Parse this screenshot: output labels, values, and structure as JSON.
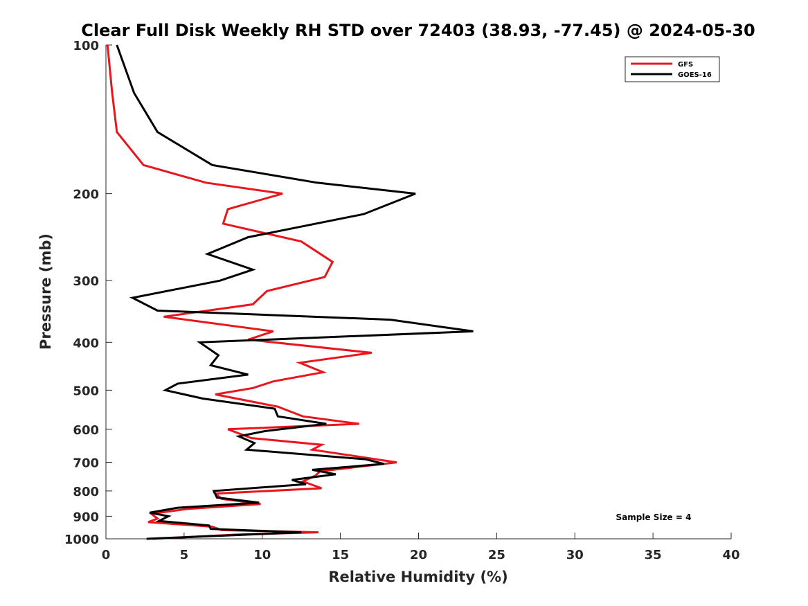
{
  "chart_data": {
    "type": "line",
    "title": "Clear Full Disk Weekly RH STD over 72403 (38.93, -77.45) @ 2024-05-30",
    "xlabel": "Relative Humidity (%)",
    "ylabel": "Pressure (mb)",
    "xlim": [
      0,
      40
    ],
    "ylim": [
      100,
      1000
    ],
    "y_scale": "log",
    "y_reversed": true,
    "x_ticks": [
      0,
      5,
      10,
      15,
      20,
      25,
      30,
      35,
      40
    ],
    "y_ticks": [
      100,
      200,
      300,
      400,
      500,
      600,
      700,
      800,
      900,
      1000
    ],
    "grid": false,
    "legend": "top-right",
    "annotation": "Sample Size = 4",
    "series": [
      {
        "name": "GFS",
        "color": "#e8171d",
        "points": [
          [
            0.1,
            100
          ],
          [
            0.4,
            125
          ],
          [
            0.7,
            150
          ],
          [
            2.4,
            175
          ],
          [
            6.4,
            190
          ],
          [
            11.3,
            200
          ],
          [
            7.8,
            215
          ],
          [
            7.5,
            230
          ],
          [
            12.5,
            250
          ],
          [
            14.5,
            275
          ],
          [
            14.0,
            295
          ],
          [
            10.3,
            315
          ],
          [
            9.4,
            335
          ],
          [
            3.7,
            355
          ],
          [
            10.7,
            380
          ],
          [
            9.1,
            395
          ],
          [
            17.0,
            420
          ],
          [
            12.4,
            440
          ],
          [
            13.9,
            460
          ],
          [
            10.7,
            480
          ],
          [
            9.4,
            495
          ],
          [
            7.0,
            510
          ],
          [
            11.0,
            540
          ],
          [
            12.6,
            565
          ],
          [
            16.2,
            585
          ],
          [
            7.8,
            600
          ],
          [
            9.3,
            625
          ],
          [
            13.8,
            645
          ],
          [
            13.2,
            660
          ],
          [
            18.6,
            700
          ],
          [
            13.7,
            730
          ],
          [
            13.4,
            745
          ],
          [
            12.6,
            765
          ],
          [
            13.8,
            790
          ],
          [
            7.0,
            810
          ],
          [
            7.4,
            830
          ],
          [
            9.9,
            850
          ],
          [
            5.2,
            870
          ],
          [
            2.9,
            890
          ],
          [
            3.3,
            910
          ],
          [
            2.7,
            925
          ],
          [
            6.8,
            945
          ],
          [
            7.4,
            960
          ],
          [
            13.6,
            970
          ],
          [
            8.5,
            980
          ],
          [
            3.0,
            1000
          ]
        ]
      },
      {
        "name": "GOES-16",
        "color": "#000000",
        "points": [
          [
            0.7,
            100
          ],
          [
            1.8,
            125
          ],
          [
            3.3,
            150
          ],
          [
            6.8,
            175
          ],
          [
            13.5,
            190
          ],
          [
            19.8,
            200
          ],
          [
            16.5,
            220
          ],
          [
            9.1,
            245
          ],
          [
            6.5,
            265
          ],
          [
            9.4,
            285
          ],
          [
            7.3,
            300
          ],
          [
            1.7,
            325
          ],
          [
            3.3,
            345
          ],
          [
            18.2,
            360
          ],
          [
            23.5,
            380
          ],
          [
            6.0,
            400
          ],
          [
            7.2,
            425
          ],
          [
            6.7,
            445
          ],
          [
            9.1,
            465
          ],
          [
            4.6,
            485
          ],
          [
            3.8,
            500
          ],
          [
            6.2,
            520
          ],
          [
            10.8,
            545
          ],
          [
            11.0,
            565
          ],
          [
            14.1,
            585
          ],
          [
            10.2,
            605
          ],
          [
            8.5,
            620
          ],
          [
            9.5,
            640
          ],
          [
            9.0,
            660
          ],
          [
            16.6,
            690
          ],
          [
            17.8,
            705
          ],
          [
            13.2,
            725
          ],
          [
            14.7,
            740
          ],
          [
            11.9,
            760
          ],
          [
            12.8,
            775
          ],
          [
            6.9,
            800
          ],
          [
            7.1,
            825
          ],
          [
            9.8,
            845
          ],
          [
            4.6,
            865
          ],
          [
            2.8,
            885
          ],
          [
            4.0,
            900
          ],
          [
            3.4,
            920
          ],
          [
            6.6,
            940
          ],
          [
            6.7,
            955
          ],
          [
            12.5,
            970
          ],
          [
            2.6,
            1000
          ]
        ]
      }
    ]
  }
}
